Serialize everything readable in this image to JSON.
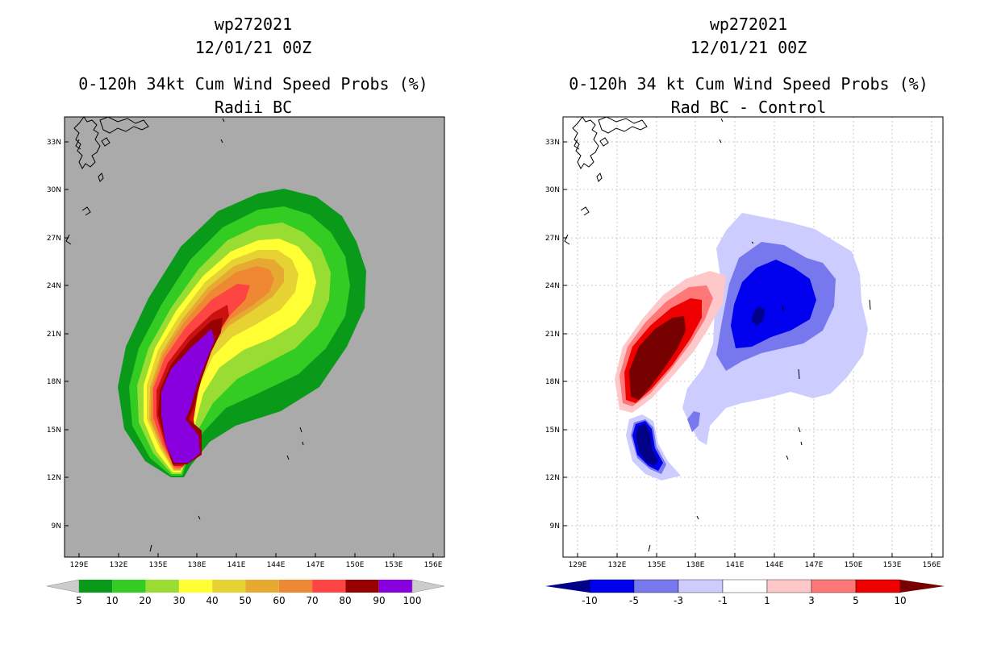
{
  "left_panel": {
    "title_lines": [
      "wp272021",
      "12/01/21 00Z",
      "0-120h 34kt Cum Wind Speed Probs (%)",
      "Radii BC"
    ],
    "colorbar": {
      "labels": [
        "5",
        "10",
        "20",
        "30",
        "40",
        "50",
        "60",
        "70",
        "80",
        "90",
        "100"
      ],
      "colors": [
        "#cccccc",
        "#0a9a1a",
        "#33cc22",
        "#99dd33",
        "#ffff33",
        "#e6d233",
        "#e6aa33",
        "#ee8833",
        "#ff4444",
        "#990000",
        "#8800dd",
        "#cccccc"
      ]
    }
  },
  "right_panel": {
    "title_lines": [
      "wp272021",
      "12/01/21 00Z",
      "0-120h 34 kt Cum Wind Speed Probs (%)",
      "Rad BC - Control"
    ],
    "colorbar": {
      "labels": [
        "-10",
        "-5",
        "-3",
        "-1",
        "1",
        "3",
        "5",
        "10"
      ],
      "colors": [
        "#000088",
        "#0000ee",
        "#7777ee",
        "#ccccff",
        "#ffffff",
        "#ffc8c8",
        "#ff7777",
        "#ee0000",
        "#770000"
      ]
    }
  },
  "axes": {
    "lon_labels": [
      "129E",
      "132E",
      "135E",
      "138E",
      "141E",
      "144E",
      "147E",
      "150E",
      "153E",
      "156E"
    ],
    "lat_labels": [
      "33N",
      "30N",
      "27N",
      "24N",
      "21N",
      "18N",
      "15N",
      "12N",
      "9N"
    ]
  },
  "chart_data": [
    {
      "type": "heatmap",
      "title": "0-120h 34kt Cum Wind Speed Probs (%)",
      "subtitle": "Radii BC",
      "variable": "34kt cumulative wind speed probability (%)",
      "lon_range": [
        128,
        157
      ],
      "lat_range": [
        7,
        34.5
      ],
      "levels": [
        5,
        10,
        20,
        30,
        40,
        50,
        60,
        70,
        80,
        90,
        100
      ],
      "background": "land/ocean grey"
    },
    {
      "type": "heatmap",
      "title": "0-120h 34 kt Cum Wind Speed Probs (%)",
      "subtitle": "Rad BC - Control",
      "variable": "probability difference (%)",
      "lon_range": [
        128,
        157
      ],
      "lat_range": [
        7,
        34.5
      ],
      "levels": [
        -10,
        -5,
        -3,
        -1,
        1,
        3,
        5,
        10
      ]
    }
  ]
}
